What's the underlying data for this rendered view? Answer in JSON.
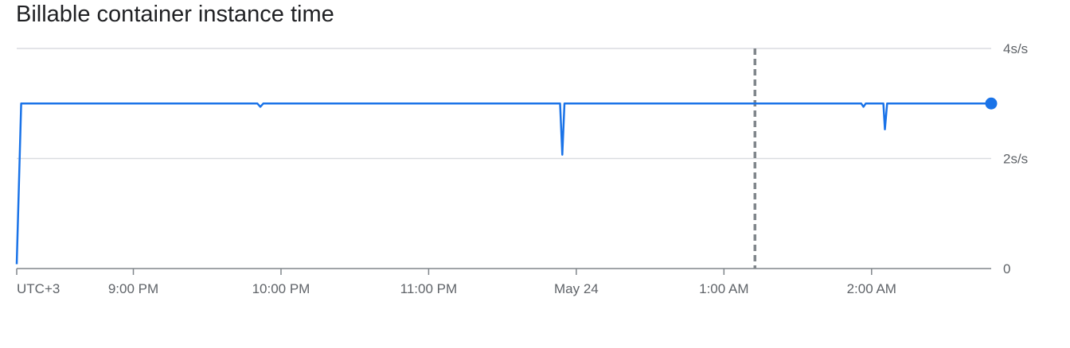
{
  "chart_data": {
    "type": "line",
    "title": "Billable container instance time",
    "timezone_label": "UTC+3",
    "x_ticks": [
      "9:00 PM",
      "10:00 PM",
      "11:00 PM",
      "May 24",
      "1:00 AM",
      "2:00 AM"
    ],
    "x_tick_hours": [
      21,
      22,
      23,
      24,
      25,
      26
    ],
    "xlim_hours": [
      20.21,
      26.81
    ],
    "y_ticks": [
      {
        "value": 0,
        "label": "0"
      },
      {
        "value": 2,
        "label": "2s/s"
      },
      {
        "value": 4,
        "label": "4s/s"
      }
    ],
    "ylim": [
      0,
      4
    ],
    "grid": true,
    "marker_hour": 25.21,
    "series": [
      {
        "color": "#1a73e8",
        "points": [
          [
            20.21,
            0.08
          ],
          [
            20.24,
            3.0
          ],
          [
            21.84,
            3.0
          ],
          [
            21.86,
            2.94
          ],
          [
            21.88,
            3.0
          ],
          [
            23.89,
            3.0
          ],
          [
            23.905,
            2.07
          ],
          [
            23.92,
            3.0
          ],
          [
            25.93,
            3.0
          ],
          [
            25.945,
            2.94
          ],
          [
            25.96,
            3.0
          ],
          [
            26.08,
            3.0
          ],
          [
            26.09,
            2.53
          ],
          [
            26.105,
            3.0
          ],
          [
            26.81,
            3.0
          ]
        ]
      }
    ]
  }
}
